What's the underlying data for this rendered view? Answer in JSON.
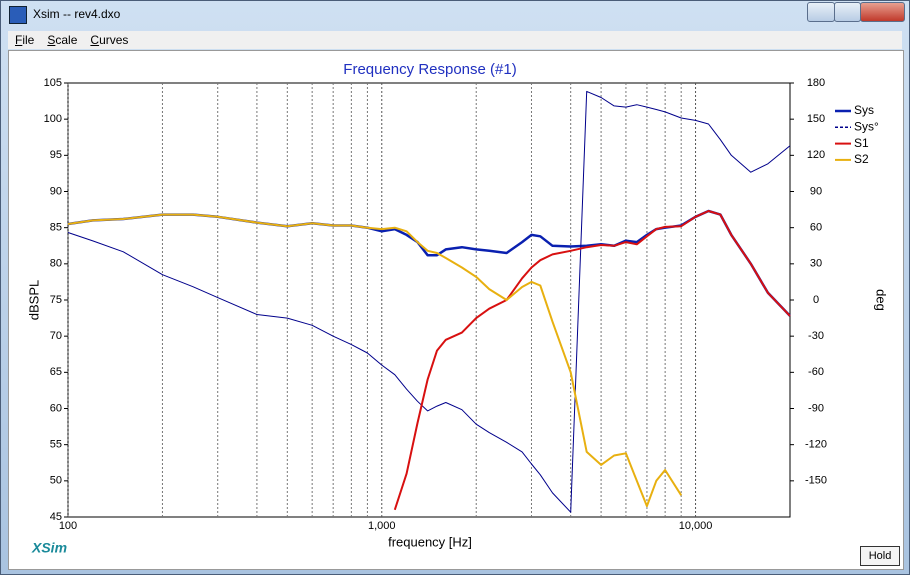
{
  "window": {
    "title": "Xsim -- rev4.dxo"
  },
  "menu": [
    "File",
    "Scale",
    "Curves"
  ],
  "logo": "XSim",
  "button": "Hold",
  "chart_data": {
    "type": "line",
    "title": "Frequency Response (#1)",
    "x_label": "frequency [Hz]",
    "y_label": "dBSPL",
    "y2_label": "deg",
    "log_x": true,
    "xlim": [
      100,
      20000
    ],
    "xticks": [
      100,
      {
        "value": 1000,
        "label": "1,000"
      },
      {
        "value": 10000,
        "label": "10,000"
      }
    ],
    "x_minor_ticks": [
      200,
      300,
      400,
      500,
      600,
      700,
      800,
      900,
      2000,
      3000,
      4000,
      5000,
      6000,
      7000,
      8000,
      9000
    ],
    "ylim": [
      45,
      105
    ],
    "yticks": [
      45,
      50,
      55,
      60,
      65,
      70,
      75,
      80,
      85,
      90,
      95,
      100,
      105
    ],
    "y2lim": [
      -180,
      180
    ],
    "y2ticks": [
      -150,
      -120,
      -90,
      -60,
      -30,
      0,
      30,
      60,
      90,
      120,
      150,
      180
    ],
    "legend": "top-right",
    "x": [
      100,
      120,
      150,
      200,
      250,
      300,
      400,
      500,
      600,
      700,
      800,
      900,
      1000,
      1100,
      1200,
      1300,
      1400,
      1500,
      1600,
      1800,
      2000,
      2200,
      2500,
      2800,
      3000,
      3200,
      3500,
      4000,
      4500,
      5000,
      5500,
      6000,
      6500,
      7000,
      7500,
      8000,
      9000,
      10000,
      11000,
      12000,
      13000,
      15000,
      17000,
      20000
    ],
    "series": [
      {
        "name": "Sys",
        "color": "#0a20b0",
        "width": 2.5,
        "values": [
          85.5,
          86,
          86.2,
          86.8,
          86.8,
          86.5,
          85.7,
          85.2,
          85.6,
          85.3,
          85.3,
          85,
          84.5,
          84.8,
          84,
          83,
          81.2,
          81.2,
          82,
          82.3,
          82,
          81.8,
          81.5,
          83,
          84,
          83.8,
          82.5,
          82.4,
          82.5,
          82.7,
          82.5,
          83.2,
          83,
          84,
          84.8,
          85,
          85.3,
          86.5,
          87.3,
          86.8,
          84,
          80,
          76,
          72.8
        ]
      },
      {
        "name": "Sys°",
        "color": "#00008b",
        "width": 1,
        "axis": "y2",
        "values": [
          56,
          49,
          40,
          21,
          11,
          2,
          -12,
          -15,
          -21,
          -30,
          -37,
          -44,
          -54,
          -62,
          -74,
          -84,
          -92,
          -88,
          -85,
          -91,
          -103,
          -110,
          -118,
          -126,
          -136,
          -145,
          -160,
          -176,
          173,
          168,
          161,
          160,
          162,
          160,
          158,
          156,
          151,
          149,
          146,
          133,
          120,
          106,
          113,
          128
        ]
      },
      {
        "name": "S1",
        "color": "#d81010",
        "width": 2,
        "values": [
          null,
          null,
          null,
          null,
          null,
          null,
          null,
          null,
          null,
          null,
          null,
          null,
          null,
          46,
          51,
          58,
          64,
          68,
          69.5,
          70.5,
          72.5,
          73.8,
          75,
          78,
          79.5,
          80.5,
          81.3,
          81.8,
          82.3,
          82.6,
          82.5,
          83,
          82.7,
          83.8,
          84.8,
          85.1,
          85.2,
          86.5,
          87.3,
          86.8,
          84,
          80,
          76,
          72.8
        ]
      },
      {
        "name": "S2",
        "color": "#e8b010",
        "width": 2,
        "values": [
          85.5,
          86,
          86.2,
          86.8,
          86.8,
          86.5,
          85.7,
          85.2,
          85.6,
          85.3,
          85.3,
          85,
          84.8,
          85,
          84.5,
          83,
          81.8,
          81.5,
          80.8,
          79.5,
          78.2,
          76.5,
          75,
          76.8,
          77.5,
          77,
          72,
          65,
          54,
          52.2,
          53.5,
          53.8,
          50,
          46.5,
          50,
          51.5,
          48,
          null,
          null,
          null,
          null,
          null,
          null,
          null
        ]
      }
    ]
  }
}
